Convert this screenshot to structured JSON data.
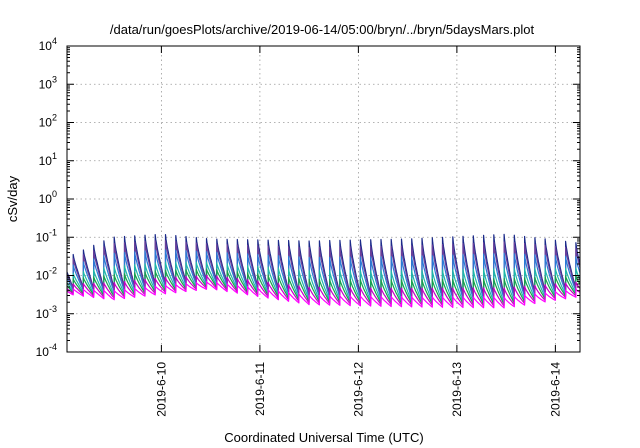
{
  "chart_data": {
    "type": "line",
    "title": "/data/run/goesPlots/archive/2019-06-14/05:00/bryn/../bryn/5daysMars.plot",
    "xlabel": "Coordinated Universal Time (UTC)",
    "ylabel": "cSv/day",
    "y_scale": "log",
    "ylim_exp": [
      -4,
      4
    ],
    "y_tick_labels": [
      {
        "base": "10",
        "exp": "4"
      },
      {
        "base": "10",
        "exp": "3"
      },
      {
        "base": "10",
        "exp": "2"
      },
      {
        "base": "10",
        "exp": "1"
      },
      {
        "base": "10",
        "exp": "0"
      },
      {
        "base": "10",
        "exp": "-1"
      },
      {
        "base": "10",
        "exp": "-2"
      },
      {
        "base": "10",
        "exp": "-3"
      },
      {
        "base": "10",
        "exp": "-4"
      }
    ],
    "x_range": [
      "2019-06-09 01:00",
      "2019-06-14 06:00"
    ],
    "x_tick_labels": [
      "2019-6-10",
      "2019-6-11",
      "2019-6-12",
      "2019-6-13",
      "2019-6-14"
    ],
    "x_ticks": [
      "2019-06-10",
      "2019-06-11",
      "2019-06-12",
      "2019-06-13",
      "2019-06-14"
    ],
    "grid": true,
    "pattern": {
      "period_hours": 2.5,
      "upper_envelope": [
        {
          "x": "2019-06-09 01:00",
          "y": 0.03
        },
        {
          "x": "2019-06-09 12:00",
          "y": 0.1
        },
        {
          "x": "2019-06-10 00:00",
          "y": 0.12
        },
        {
          "x": "2019-06-10 12:00",
          "y": 0.09
        },
        {
          "x": "2019-06-11 12:00",
          "y": 0.08
        },
        {
          "x": "2019-06-12 12:00",
          "y": 0.09
        },
        {
          "x": "2019-06-13 12:00",
          "y": 0.12
        },
        {
          "x": "2019-06-14 06:00",
          "y": 0.07
        }
      ],
      "lower_envelope": [
        {
          "x": "2019-06-09 01:00",
          "y": 0.003
        },
        {
          "x": "2019-06-09 12:00",
          "y": 0.002
        },
        {
          "x": "2019-06-10 12:00",
          "y": 0.004
        },
        {
          "x": "2019-06-11 12:00",
          "y": 0.0015
        },
        {
          "x": "2019-06-12 12:00",
          "y": 0.0013
        },
        {
          "x": "2019-06-13 12:00",
          "y": 0.0012
        },
        {
          "x": "2019-06-14 06:00",
          "y": 0.0025
        }
      ]
    },
    "series": [
      {
        "color": "#1b2a8a",
        "level": 1.0
      },
      {
        "color": "#6a3e9a",
        "level": 0.9
      },
      {
        "color": "#2a7ad6",
        "level": 0.75
      },
      {
        "color": "#1fb8a8",
        "level": 0.55
      },
      {
        "color": "#18a04a",
        "level": 0.42
      },
      {
        "color": "#c400c4",
        "level": 0.3
      },
      {
        "color": "#ff00ff",
        "level": 0.18
      }
    ]
  }
}
